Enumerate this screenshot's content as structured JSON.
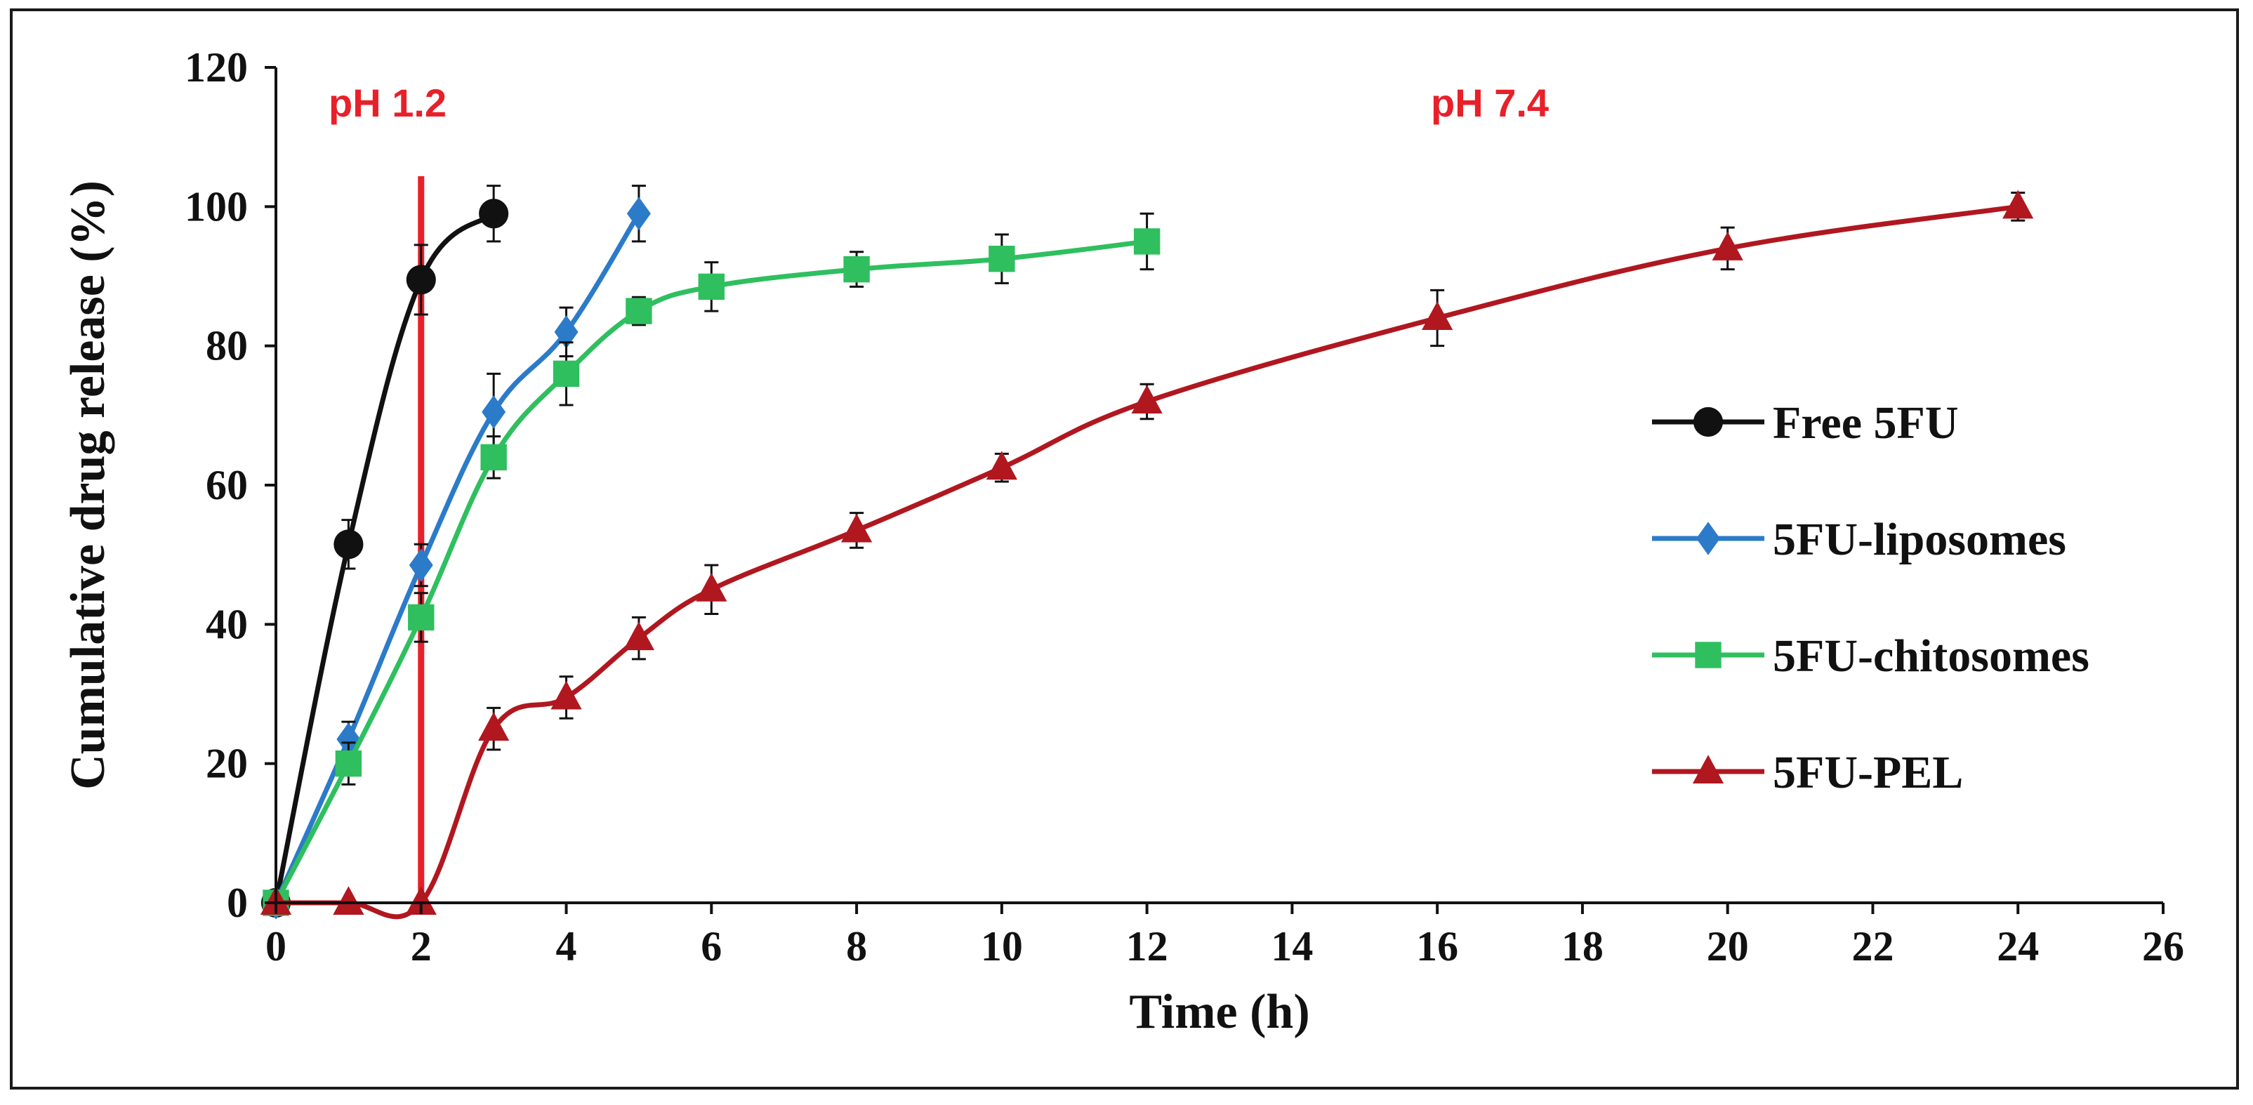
{
  "chart_data": {
    "type": "line",
    "xlabel": "Time (h)",
    "ylabel": "Cumulative drug release (%)",
    "xlim": [
      0,
      26
    ],
    "ylim": [
      0,
      120
    ],
    "x_ticks": [
      "0",
      "2",
      "4",
      "6",
      "8",
      "10",
      "12",
      "14",
      "16",
      "18",
      "20",
      "22",
      "24",
      "26"
    ],
    "y_ticks": [
      "0",
      "20",
      "40",
      "60",
      "80",
      "100",
      "120"
    ],
    "grid": false,
    "legend_position": "right",
    "annotations": [
      {
        "text": "pH 1.2",
        "color": "#e8202a"
      },
      {
        "text": "pH 7.4",
        "color": "#e8202a"
      }
    ],
    "ph_change_x": 2,
    "series": [
      {
        "name": "Free 5FU",
        "color": "#111111",
        "marker": "circle",
        "x": [
          0,
          1,
          2,
          3
        ],
        "y": [
          0,
          51.5,
          89.5,
          99
        ],
        "err": [
          0,
          3.5,
          5,
          4
        ]
      },
      {
        "name": "5FU-liposomes",
        "color": "#2b7bc9",
        "marker": "diamond",
        "x": [
          0,
          1,
          2,
          3,
          4,
          5
        ],
        "y": [
          0,
          23.5,
          48.5,
          70.5,
          82,
          99
        ],
        "err": [
          0,
          2.5,
          3,
          5.5,
          3.5,
          4
        ]
      },
      {
        "name": "5FU-chitosomes",
        "color": "#2fbf5f",
        "marker": "square",
        "x": [
          0,
          1,
          2,
          3,
          4,
          5,
          6,
          8,
          10,
          12
        ],
        "y": [
          0,
          20,
          41,
          64,
          76,
          85,
          88.5,
          91,
          92.5,
          95
        ],
        "err": [
          0,
          3,
          3.5,
          3,
          4.5,
          2,
          3.5,
          2.5,
          3.5,
          4
        ]
      },
      {
        "name": "5FU-PEL",
        "color": "#b0171f",
        "marker": "triangle",
        "x": [
          0,
          1,
          2,
          3,
          4,
          5,
          6,
          8,
          10,
          12,
          16,
          20,
          24
        ],
        "y": [
          0,
          0,
          0,
          25,
          29.5,
          38,
          45,
          53.5,
          62.5,
          72,
          84,
          94,
          100
        ],
        "err": [
          0,
          0,
          0,
          3,
          3,
          3,
          3.5,
          2.5,
          2,
          2.5,
          4,
          3,
          2
        ]
      }
    ]
  }
}
